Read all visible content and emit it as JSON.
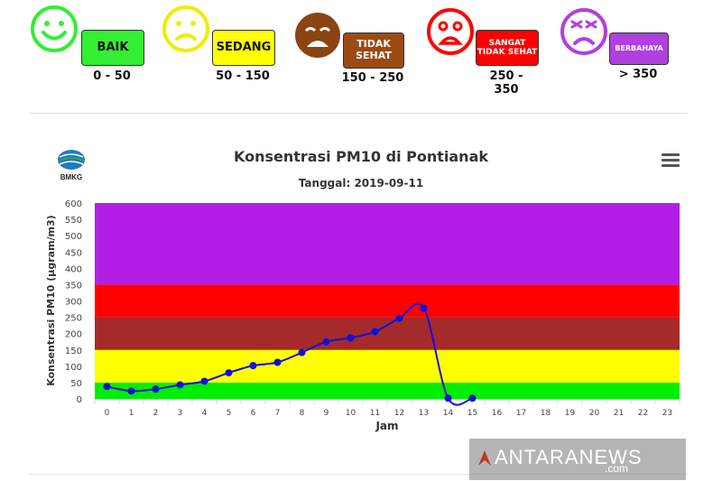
{
  "legend": {
    "categories": [
      {
        "label": "BAIK",
        "range": "0 - 50",
        "color": "#33ee33",
        "text_color": "#111111",
        "face": "smile-icon"
      },
      {
        "label": "SEDANG",
        "range": "50 - 150",
        "color": "#ffff00",
        "text_color": "#111111",
        "face": "neutral-icon"
      },
      {
        "label_lines": [
          "TIDAK",
          "SEHAT"
        ],
        "range": "150 - 250",
        "color": "#9b4a12",
        "text_color": "#ffffff",
        "face": "crying-icon"
      },
      {
        "label_lines": [
          "SANGAT",
          "TIDAK SEHAT"
        ],
        "range": "250 - 350",
        "color": "#ff0000",
        "text_color": "#ffffff",
        "face": "distressed-icon"
      },
      {
        "label": "BERBAHAYA",
        "range": "> 350",
        "color": "#b040e0",
        "text_color": "#ffffff",
        "face": "angry-icon"
      }
    ]
  },
  "logo": {
    "text": "BMKG"
  },
  "watermark": {
    "text": "ANTARANEWS",
    "sub": ".com"
  },
  "chart_data": {
    "type": "line",
    "title": "Konsentrasi PM10 di Pontianak",
    "subtitle": "Tanggal: 2019-09-11",
    "xlabel": "Jam",
    "ylabel": "Konsentrasi PM10 (µgram/m3)",
    "x": [
      0,
      1,
      2,
      3,
      4,
      5,
      6,
      7,
      8,
      9,
      10,
      11,
      12,
      13,
      14,
      15
    ],
    "xticks": [
      0,
      1,
      2,
      3,
      4,
      5,
      6,
      7,
      8,
      9,
      10,
      11,
      12,
      13,
      14,
      15,
      16,
      17,
      18,
      19,
      20,
      21,
      22,
      23
    ],
    "xlim": [
      -0.5,
      23.5
    ],
    "ylim": [
      0,
      600
    ],
    "yticks": [
      0,
      50,
      100,
      150,
      200,
      250,
      300,
      350,
      400,
      450,
      500,
      550,
      600
    ],
    "series": [
      {
        "values": [
          38,
          24,
          30,
          43,
          54,
          80,
          102,
          112,
          142,
          175,
          187,
          206,
          247,
          278,
          2,
          2
        ],
        "color": "#1010dd"
      }
    ],
    "bands": [
      {
        "from": 0,
        "to": 50,
        "color": "#00ee00"
      },
      {
        "from": 50,
        "to": 150,
        "color": "#ffff00"
      },
      {
        "from": 150,
        "to": 250,
        "color": "#a52a2a"
      },
      {
        "from": 250,
        "to": 350,
        "color": "#ff0000"
      },
      {
        "from": 350,
        "to": 600,
        "color": "#b31ee6"
      }
    ],
    "grid": false
  }
}
